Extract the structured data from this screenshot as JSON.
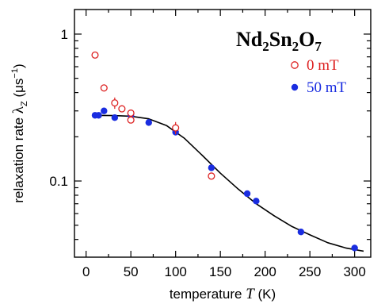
{
  "chart_data": {
    "type": "scatter",
    "title": "Nd₂Sn₂O₇",
    "title_parts": {
      "el1": "Nd",
      "n1": "2",
      "el2": "Sn",
      "n2": "2",
      "el3": "O",
      "n3": "7"
    },
    "xlabel": "temperature T (K)",
    "xlabel_parts": {
      "pre": "temperature ",
      "var": "T",
      "post": " (K)"
    },
    "ylabel": "relaxation rate λz (μs⁻¹)",
    "ylabel_parts": {
      "pre": "relaxation rate ",
      "lambda": "λ",
      "sub": "Z",
      "post": " (μs",
      "sup": "−1",
      "close": ")"
    },
    "xlim": [
      -13,
      318
    ],
    "ylim": [
      0.0303,
      1.47
    ],
    "yscale": "log",
    "xticks": [
      0,
      50,
      100,
      150,
      200,
      250,
      300
    ],
    "xtick_labels": [
      "0",
      "50",
      "100",
      "150",
      "200",
      "250",
      "300"
    ],
    "yticks": [
      0.1,
      1
    ],
    "ytick_labels": [
      "0.1",
      "1"
    ],
    "legend_position": "top-right",
    "series": [
      {
        "name": "0 mT",
        "marker": "open-circle",
        "color": "#dd2222",
        "points": [
          {
            "x": 10,
            "y": 0.72
          },
          {
            "x": 20,
            "y": 0.43
          },
          {
            "x": 32,
            "y": 0.34,
            "err": 0.03
          },
          {
            "x": 40,
            "y": 0.31
          },
          {
            "x": 50,
            "y": 0.29
          },
          {
            "x": 50,
            "y": 0.26
          },
          {
            "x": 100,
            "y": 0.23,
            "err": 0.022
          },
          {
            "x": 140,
            "y": 0.108
          }
        ]
      },
      {
        "name": "50 mT",
        "marker": "filled-circle",
        "color": "#1a2de0",
        "points": [
          {
            "x": 10,
            "y": 0.28
          },
          {
            "x": 14,
            "y": 0.28
          },
          {
            "x": 20,
            "y": 0.3
          },
          {
            "x": 32,
            "y": 0.27
          },
          {
            "x": 50,
            "y": 0.28
          },
          {
            "x": 70,
            "y": 0.25
          },
          {
            "x": 100,
            "y": 0.215
          },
          {
            "x": 140,
            "y": 0.123
          },
          {
            "x": 180,
            "y": 0.082
          },
          {
            "x": 190,
            "y": 0.073
          },
          {
            "x": 240,
            "y": 0.045
          },
          {
            "x": 300,
            "y": 0.035
          }
        ]
      },
      {
        "name": "fit",
        "type": "line",
        "color": "#000000",
        "points": [
          {
            "x": 10,
            "y": 0.28
          },
          {
            "x": 30,
            "y": 0.279
          },
          {
            "x": 50,
            "y": 0.276
          },
          {
            "x": 70,
            "y": 0.265
          },
          {
            "x": 90,
            "y": 0.238
          },
          {
            "x": 110,
            "y": 0.195
          },
          {
            "x": 130,
            "y": 0.149
          },
          {
            "x": 150,
            "y": 0.113
          },
          {
            "x": 170,
            "y": 0.088
          },
          {
            "x": 190,
            "y": 0.07
          },
          {
            "x": 210,
            "y": 0.058
          },
          {
            "x": 230,
            "y": 0.049
          },
          {
            "x": 250,
            "y": 0.043
          },
          {
            "x": 270,
            "y": 0.038
          },
          {
            "x": 290,
            "y": 0.035
          },
          {
            "x": 310,
            "y": 0.0333
          }
        ]
      }
    ]
  }
}
